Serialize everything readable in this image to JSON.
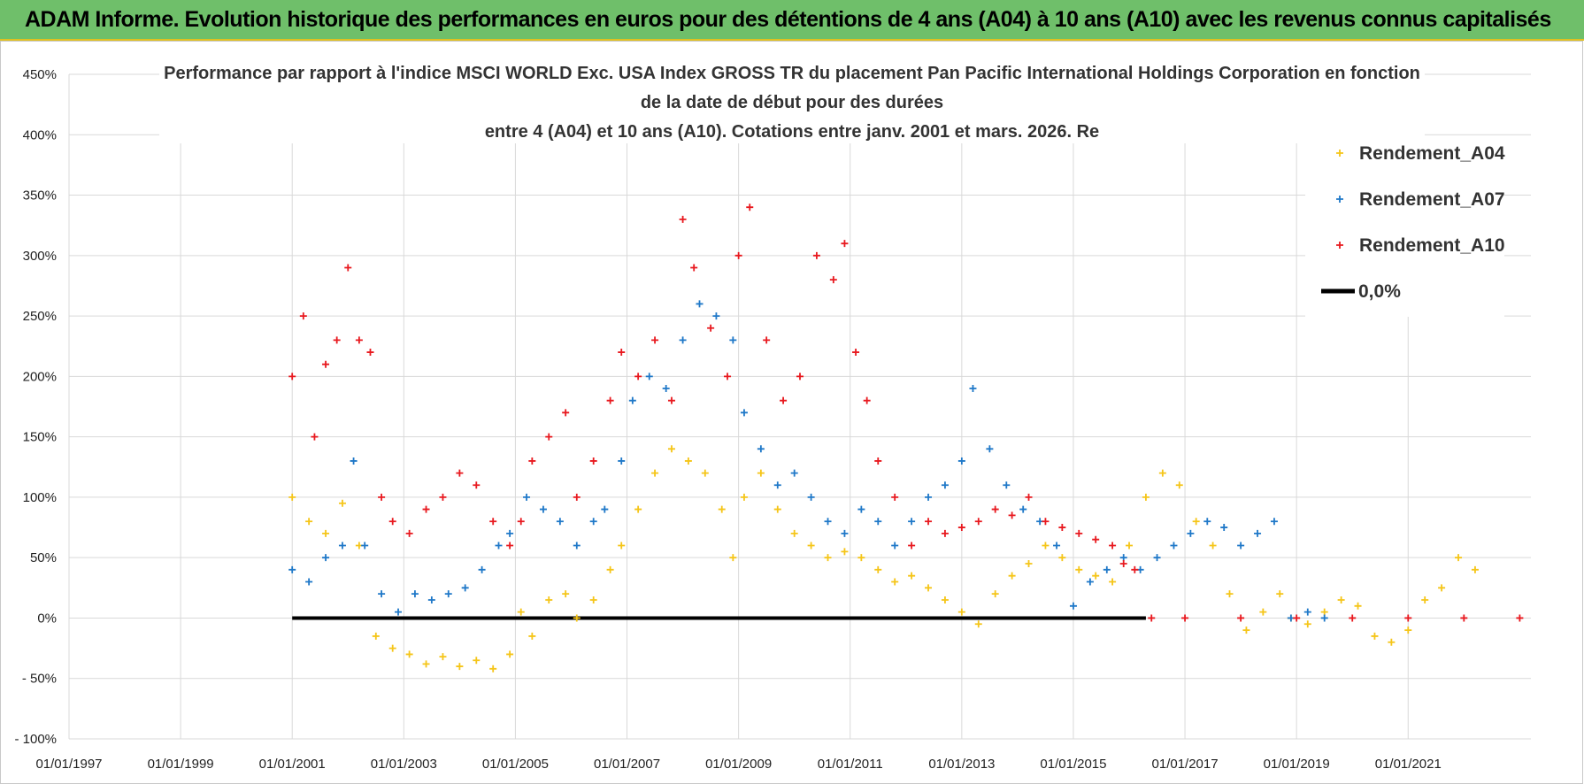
{
  "banner": {
    "text": "ADAM Informe. Evolution historique des performances en euros pour des détentions de 4 ans (A04) à 10 ans (A10) avec les revenus connus capitalisés"
  },
  "chart_data": {
    "type": "scatter",
    "title_lines": [
      "Performance par rapport à l'indice MSCI WORLD Exc. USA Index GROSS TR  du placement Pan Pacific International Holdings Corporation en fonction",
      "de la date de début pour des durées",
      "entre 4 (A04) et 10 ans (A10). Cotations entre janv. 2001 et mars. 2026. Re"
    ],
    "x_tick_labels": [
      "01/01/1997",
      "01/01/1999",
      "01/01/2001",
      "01/01/2003",
      "01/01/2005",
      "01/01/2007",
      "01/01/2009",
      "01/01/2011",
      "01/01/2013",
      "01/01/2015",
      "01/01/2017",
      "01/01/2019",
      "01/01/2021"
    ],
    "x_range": [
      1997.0,
      2023.2
    ],
    "y_ticks": [
      -100,
      -50,
      0,
      50,
      100,
      150,
      200,
      250,
      300,
      350,
      400,
      450
    ],
    "y_tick_labels": [
      "- 100%",
      "- 50%",
      "0%",
      "50%",
      "100%",
      "150%",
      "200%",
      "250%",
      "300%",
      "350%",
      "400%",
      "450%"
    ],
    "ylim": [
      -100,
      450
    ],
    "legend_position": "top-right",
    "series": [
      {
        "name": "Rendement_A04",
        "color": "#f5c518",
        "marker": "plus",
        "points": [
          [
            2001.0,
            100
          ],
          [
            2001.3,
            80
          ],
          [
            2001.6,
            70
          ],
          [
            2001.9,
            95
          ],
          [
            2002.2,
            60
          ],
          [
            2002.5,
            -15
          ],
          [
            2002.8,
            -25
          ],
          [
            2003.1,
            -30
          ],
          [
            2003.4,
            -38
          ],
          [
            2003.7,
            -32
          ],
          [
            2004.0,
            -40
          ],
          [
            2004.3,
            -35
          ],
          [
            2004.6,
            -42
          ],
          [
            2004.9,
            -30
          ],
          [
            2005.1,
            5
          ],
          [
            2005.3,
            -15
          ],
          [
            2005.6,
            15
          ],
          [
            2005.9,
            20
          ],
          [
            2006.1,
            0
          ],
          [
            2006.4,
            15
          ],
          [
            2006.7,
            40
          ],
          [
            2006.9,
            60
          ],
          [
            2007.2,
            90
          ],
          [
            2007.5,
            120
          ],
          [
            2007.8,
            140
          ],
          [
            2008.1,
            130
          ],
          [
            2008.4,
            120
          ],
          [
            2008.7,
            90
          ],
          [
            2008.9,
            50
          ],
          [
            2009.1,
            100
          ],
          [
            2009.4,
            120
          ],
          [
            2009.7,
            90
          ],
          [
            2010.0,
            70
          ],
          [
            2010.3,
            60
          ],
          [
            2010.6,
            50
          ],
          [
            2010.9,
            55
          ],
          [
            2011.2,
            50
          ],
          [
            2011.5,
            40
          ],
          [
            2011.8,
            30
          ],
          [
            2012.1,
            35
          ],
          [
            2012.4,
            25
          ],
          [
            2012.7,
            15
          ],
          [
            2013.0,
            5
          ],
          [
            2013.3,
            -5
          ],
          [
            2013.6,
            20
          ],
          [
            2013.9,
            35
          ],
          [
            2014.2,
            45
          ],
          [
            2014.5,
            60
          ],
          [
            2014.8,
            50
          ],
          [
            2015.1,
            40
          ],
          [
            2015.4,
            35
          ],
          [
            2015.7,
            30
          ],
          [
            2016.0,
            60
          ],
          [
            2016.3,
            100
          ],
          [
            2016.6,
            120
          ],
          [
            2016.9,
            110
          ],
          [
            2017.2,
            80
          ],
          [
            2017.5,
            60
          ],
          [
            2017.8,
            20
          ],
          [
            2018.1,
            -10
          ],
          [
            2018.4,
            5
          ],
          [
            2018.7,
            20
          ],
          [
            2018.9,
            0
          ],
          [
            2019.2,
            -5
          ],
          [
            2019.5,
            5
          ],
          [
            2019.8,
            15
          ],
          [
            2020.1,
            10
          ],
          [
            2020.4,
            -15
          ],
          [
            2020.7,
            -20
          ],
          [
            2021.0,
            -10
          ],
          [
            2021.3,
            15
          ],
          [
            2021.6,
            25
          ],
          [
            2021.9,
            50
          ],
          [
            2022.2,
            40
          ]
        ]
      },
      {
        "name": "Rendement_A07",
        "color": "#1f78c8",
        "marker": "plus",
        "points": [
          [
            2001.0,
            40
          ],
          [
            2001.3,
            30
          ],
          [
            2001.6,
            50
          ],
          [
            2001.9,
            60
          ],
          [
            2002.1,
            130
          ],
          [
            2002.3,
            60
          ],
          [
            2002.6,
            20
          ],
          [
            2002.9,
            5
          ],
          [
            2003.2,
            20
          ],
          [
            2003.5,
            15
          ],
          [
            2003.8,
            20
          ],
          [
            2004.1,
            25
          ],
          [
            2004.4,
            40
          ],
          [
            2004.7,
            60
          ],
          [
            2004.9,
            70
          ],
          [
            2005.2,
            100
          ],
          [
            2005.5,
            90
          ],
          [
            2005.8,
            80
          ],
          [
            2006.1,
            60
          ],
          [
            2006.4,
            80
          ],
          [
            2006.6,
            90
          ],
          [
            2006.9,
            130
          ],
          [
            2007.1,
            180
          ],
          [
            2007.4,
            200
          ],
          [
            2007.7,
            190
          ],
          [
            2008.0,
            230
          ],
          [
            2008.3,
            260
          ],
          [
            2008.6,
            250
          ],
          [
            2008.9,
            230
          ],
          [
            2009.1,
            170
          ],
          [
            2009.4,
            140
          ],
          [
            2009.7,
            110
          ],
          [
            2010.0,
            120
          ],
          [
            2010.3,
            100
          ],
          [
            2010.6,
            80
          ],
          [
            2010.9,
            70
          ],
          [
            2011.2,
            90
          ],
          [
            2011.5,
            80
          ],
          [
            2011.8,
            60
          ],
          [
            2012.1,
            80
          ],
          [
            2012.4,
            100
          ],
          [
            2012.7,
            110
          ],
          [
            2013.0,
            130
          ],
          [
            2013.2,
            190
          ],
          [
            2013.5,
            140
          ],
          [
            2013.8,
            110
          ],
          [
            2014.1,
            90
          ],
          [
            2014.4,
            80
          ],
          [
            2014.7,
            60
          ],
          [
            2015.0,
            10
          ],
          [
            2015.3,
            30
          ],
          [
            2015.6,
            40
          ],
          [
            2015.9,
            50
          ],
          [
            2016.2,
            40
          ],
          [
            2016.5,
            50
          ],
          [
            2016.8,
            60
          ],
          [
            2017.1,
            70
          ],
          [
            2017.4,
            80
          ],
          [
            2017.7,
            75
          ],
          [
            2018.0,
            60
          ],
          [
            2018.3,
            70
          ],
          [
            2018.6,
            80
          ],
          [
            2018.9,
            0
          ],
          [
            2019.2,
            5
          ],
          [
            2019.5,
            0
          ]
        ]
      },
      {
        "name": "Rendement_A10",
        "color": "#e8191f",
        "marker": "plus",
        "points": [
          [
            2001.0,
            200
          ],
          [
            2001.2,
            250
          ],
          [
            2001.4,
            150
          ],
          [
            2001.6,
            210
          ],
          [
            2001.8,
            230
          ],
          [
            2002.0,
            290
          ],
          [
            2002.2,
            230
          ],
          [
            2002.4,
            220
          ],
          [
            2002.6,
            100
          ],
          [
            2002.8,
            80
          ],
          [
            2003.1,
            70
          ],
          [
            2003.4,
            90
          ],
          [
            2003.7,
            100
          ],
          [
            2004.0,
            120
          ],
          [
            2004.3,
            110
          ],
          [
            2004.6,
            80
          ],
          [
            2004.9,
            60
          ],
          [
            2005.1,
            80
          ],
          [
            2005.3,
            130
          ],
          [
            2005.6,
            150
          ],
          [
            2005.9,
            170
          ],
          [
            2006.1,
            100
          ],
          [
            2006.4,
            130
          ],
          [
            2006.7,
            180
          ],
          [
            2006.9,
            220
          ],
          [
            2007.2,
            200
          ],
          [
            2007.5,
            230
          ],
          [
            2007.8,
            180
          ],
          [
            2008.0,
            330
          ],
          [
            2008.2,
            290
          ],
          [
            2008.5,
            240
          ],
          [
            2008.8,
            200
          ],
          [
            2009.0,
            300
          ],
          [
            2009.2,
            340
          ],
          [
            2009.5,
            230
          ],
          [
            2009.8,
            180
          ],
          [
            2010.1,
            200
          ],
          [
            2010.4,
            300
          ],
          [
            2010.7,
            280
          ],
          [
            2010.9,
            310
          ],
          [
            2011.1,
            220
          ],
          [
            2011.3,
            180
          ],
          [
            2011.5,
            130
          ],
          [
            2011.8,
            100
          ],
          [
            2012.1,
            60
          ],
          [
            2012.4,
            80
          ],
          [
            2012.7,
            70
          ],
          [
            2013.0,
            75
          ],
          [
            2013.3,
            80
          ],
          [
            2013.6,
            90
          ],
          [
            2013.9,
            85
          ],
          [
            2014.2,
            100
          ],
          [
            2014.5,
            80
          ],
          [
            2014.8,
            75
          ],
          [
            2015.1,
            70
          ],
          [
            2015.4,
            65
          ],
          [
            2015.7,
            60
          ],
          [
            2015.9,
            45
          ],
          [
            2016.1,
            40
          ],
          [
            2016.4,
            0
          ],
          [
            2017.0,
            0
          ],
          [
            2018.0,
            0
          ],
          [
            2019.0,
            0
          ],
          [
            2020.0,
            0
          ],
          [
            2021.0,
            0
          ],
          [
            2022.0,
            0
          ],
          [
            2023.0,
            0
          ]
        ]
      }
    ],
    "reference_line": {
      "name": "0,0%",
      "y": 0,
      "x_range": [
        2001.0,
        2016.3
      ],
      "color": "#000000"
    },
    "legend_labels": [
      "Rendement_A04",
      "Rendement_A07",
      "Rendement_A10",
      "0,0%"
    ]
  }
}
